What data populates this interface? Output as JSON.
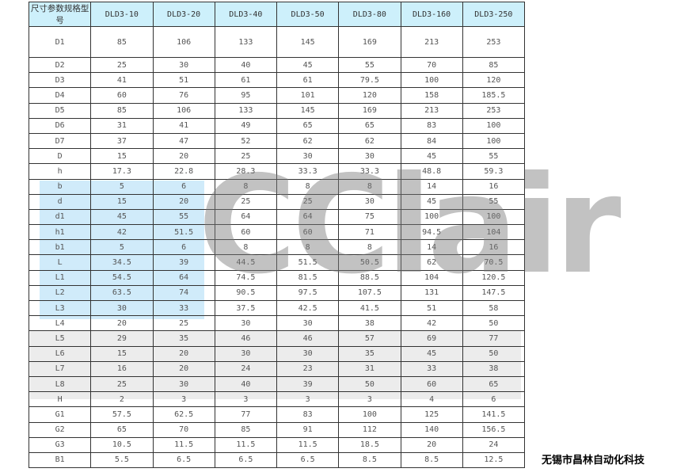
{
  "table": {
    "headers": [
      "尺寸参数规格型号",
      "DLD3-10",
      "DLD3-20",
      "DLD3-40",
      "DLD3-50",
      "DLD3-80",
      "DLD3-160",
      "DLD3-250"
    ],
    "rows": [
      [
        "D1",
        "85",
        "106",
        "133",
        "145",
        "169",
        "213",
        "253"
      ],
      [
        "D2",
        "25",
        "30",
        "40",
        "45",
        "55",
        "70",
        "85"
      ],
      [
        "D3",
        "41",
        "51",
        "61",
        "61",
        "79.5",
        "100",
        "120"
      ],
      [
        "D4",
        "60",
        "76",
        "95",
        "101",
        "120",
        "158",
        "185.5"
      ],
      [
        "D5",
        "85",
        "106",
        "133",
        "145",
        "169",
        "213",
        "253"
      ],
      [
        "D6",
        "31",
        "41",
        "49",
        "65",
        "65",
        "83",
        "100"
      ],
      [
        "D7",
        "37",
        "47",
        "52",
        "62",
        "62",
        "84",
        "100"
      ],
      [
        "D",
        "15",
        "20",
        "25",
        "30",
        "30",
        "45",
        "55"
      ],
      [
        "h",
        "17.3",
        "22.8",
        "28.3",
        "33.3",
        "33.3",
        "48.8",
        "59.3"
      ],
      [
        "b",
        "5",
        "6",
        "8",
        "8",
        "8",
        "14",
        "16"
      ],
      [
        "d",
        "15",
        "20",
        "25",
        "25",
        "30",
        "45",
        "55"
      ],
      [
        "d1",
        "45",
        "55",
        "64",
        "64",
        "75",
        "100",
        "100"
      ],
      [
        "h1",
        "42",
        "51.5",
        "60",
        "60",
        "71",
        "94.5",
        "104"
      ],
      [
        "b1",
        "5",
        "6",
        "8",
        "8",
        "8",
        "14",
        "16"
      ],
      [
        "L",
        "34.5",
        "39",
        "44.5",
        "51.5",
        "50.5",
        "62",
        "70.5"
      ],
      [
        "L1",
        "54.5",
        "64",
        "74.5",
        "81.5",
        "88.5",
        "104",
        "120.5"
      ],
      [
        "L2",
        "63.5",
        "74",
        "90.5",
        "97.5",
        "107.5",
        "131",
        "147.5"
      ],
      [
        "L3",
        "30",
        "33",
        "37.5",
        "42.5",
        "41.5",
        "51",
        "58"
      ],
      [
        "L4",
        "20",
        "25",
        "30",
        "30",
        "38",
        "42",
        "50"
      ],
      [
        "L5",
        "29",
        "35",
        "46",
        "46",
        "57",
        "69",
        "77"
      ],
      [
        "L6",
        "15",
        "20",
        "30",
        "30",
        "35",
        "45",
        "50"
      ],
      [
        "L7",
        "16",
        "20",
        "24",
        "23",
        "31",
        "33",
        "38"
      ],
      [
        "L8",
        "25",
        "30",
        "40",
        "39",
        "50",
        "60",
        "65"
      ],
      [
        "H",
        "2",
        "3",
        "3",
        "3",
        "3",
        "4",
        "6"
      ],
      [
        "G1",
        "57.5",
        "62.5",
        "77",
        "83",
        "100",
        "125",
        "141.5"
      ],
      [
        "G2",
        "65",
        "70",
        "85",
        "91",
        "112",
        "140",
        "156.5"
      ],
      [
        "G3",
        "10.5",
        "11.5",
        "11.5",
        "11.5",
        "18.5",
        "20",
        "24"
      ],
      [
        "B1",
        "5.5",
        "6.5",
        "6.5",
        "6.5",
        "8.5",
        "8.5",
        "12.5"
      ]
    ]
  },
  "watermark": {
    "text": "CClair"
  },
  "caption": "无锡市昌林自动化科技",
  "colors": {
    "header_bg": "#cdf0fb",
    "border": "#333333"
  }
}
